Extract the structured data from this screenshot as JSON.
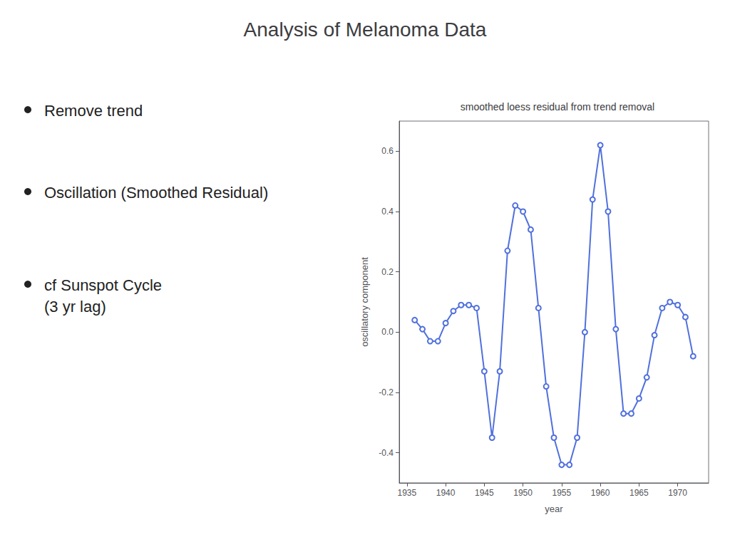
{
  "chart_data": {
    "type": "line",
    "title": "Analysis of Melanoma Data",
    "subtitle": "smoothed loess residual from trend removal",
    "annotations": [
      "Remove trend",
      "Oscillation (Smoothed Residual)",
      "cf Sunspot Cycle\n(3 yr lag)"
    ],
    "xlabel": "year",
    "ylabel": "oscillatory component",
    "x": [
      1936,
      1937,
      1938,
      1939,
      1940,
      1941,
      1942,
      1943,
      1944,
      1945,
      1946,
      1947,
      1948,
      1949,
      1950,
      1951,
      1952,
      1953,
      1954,
      1955,
      1956,
      1957,
      1958,
      1959,
      1960,
      1961,
      1962,
      1963,
      1964,
      1965,
      1966,
      1967,
      1968,
      1969,
      1970,
      1971,
      1972
    ],
    "values": [
      0.04,
      0.01,
      -0.03,
      -0.03,
      0.03,
      0.07,
      0.09,
      0.09,
      0.08,
      -0.13,
      -0.35,
      -0.13,
      0.27,
      0.42,
      0.4,
      0.34,
      0.08,
      -0.18,
      -0.35,
      -0.44,
      -0.44,
      -0.35,
      0.0,
      0.44,
      0.62,
      0.4,
      0.01,
      -0.27,
      -0.27,
      -0.22,
      -0.15,
      -0.01,
      0.08,
      0.1,
      0.09,
      0.05,
      -0.08
    ],
    "xlim": [
      1934,
      1974
    ],
    "xticks": [
      1935,
      1940,
      1945,
      1950,
      1955,
      1960,
      1965,
      1970
    ],
    "ylim": [
      -0.5,
      0.7
    ],
    "yticks": [
      -0.4,
      -0.2,
      {
        "value": 0,
        "label": "0.0"
      },
      0.2,
      0.4,
      0.6
    ],
    "marker": "circle",
    "grid": false
  }
}
